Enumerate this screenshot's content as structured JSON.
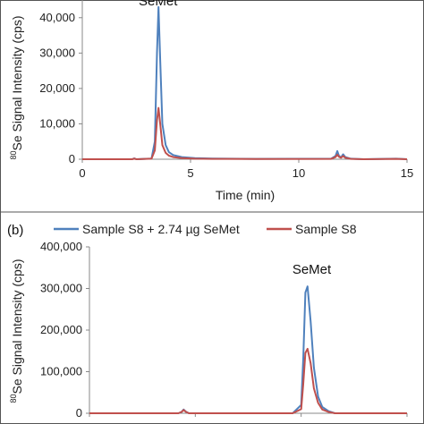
{
  "chart_data": [
    {
      "type": "line",
      "panel_label": "",
      "title": "",
      "xlabel": "Time (min)",
      "ylabel_sup": "80",
      "ylabel": "Se Signal Intensity (cps)",
      "xlim": [
        0,
        15
      ],
      "ylim": [
        0,
        45000
      ],
      "xticks": [
        "0",
        "5",
        "10",
        "15"
      ],
      "yticks": [
        {
          "v": 0,
          "label": "0"
        },
        {
          "v": 10000,
          "label": "10,000"
        },
        {
          "v": 20000,
          "label": "20,000"
        },
        {
          "v": 30000,
          "label": "30,000"
        },
        {
          "v": 40000,
          "label": "40,000"
        }
      ],
      "annotations": [
        {
          "text": "SeMet",
          "x": 3.5,
          "y": 43500
        }
      ],
      "grid": false,
      "series": [
        {
          "color": "#4f81bd",
          "x": [
            0,
            2.3,
            2.4,
            2.5,
            3.2,
            3.35,
            3.45,
            3.52,
            3.6,
            3.7,
            3.85,
            4.0,
            4.2,
            4.6,
            5.2,
            6,
            8,
            11.5,
            11.7,
            11.78,
            11.85,
            11.95,
            12.05,
            12.15,
            12.4,
            13,
            14.5,
            15
          ],
          "y": [
            0,
            0,
            250,
            0,
            200,
            5000,
            30000,
            43000,
            28000,
            10000,
            4000,
            2000,
            1200,
            600,
            300,
            200,
            100,
            150,
            900,
            2300,
            1000,
            500,
            1400,
            600,
            150,
            0,
            150,
            0
          ]
        },
        {
          "color": "#c0504d",
          "x": [
            0,
            2.3,
            2.4,
            2.5,
            3.2,
            3.35,
            3.45,
            3.52,
            3.6,
            3.7,
            3.85,
            4.0,
            4.2,
            4.6,
            5.2,
            6,
            8,
            11.5,
            11.7,
            11.78,
            11.85,
            11.95,
            12.05,
            12.15,
            12.4,
            13,
            14.5,
            15
          ],
          "y": [
            0,
            0,
            150,
            0,
            150,
            2500,
            11000,
            14500,
            10000,
            4000,
            1800,
            1000,
            600,
            300,
            150,
            100,
            80,
            100,
            600,
            1300,
            700,
            400,
            900,
            400,
            100,
            0,
            100,
            0
          ]
        }
      ]
    },
    {
      "type": "line",
      "panel_label": "(b)",
      "title": "",
      "xlabel": "",
      "ylabel_sup": "80",
      "ylabel": "Se Signal Intensity (cps)",
      "xlim": [
        0,
        15
      ],
      "ylim": [
        0,
        400000
      ],
      "xticks": [],
      "yticks": [
        {
          "v": 0,
          "label": "0"
        },
        {
          "v": 100000,
          "label": "100,000"
        },
        {
          "v": 200000,
          "label": "200,000"
        },
        {
          "v": 300000,
          "label": "300,000"
        },
        {
          "v": 400000,
          "label": "400,000"
        }
      ],
      "annotations": [
        {
          "text": "SeMet",
          "x": 10.5,
          "y": 335000
        }
      ],
      "grid": false,
      "series": [
        {
          "name": "Sample S8 + 2.74 µg SeMet",
          "color": "#4f81bd",
          "x": [
            0,
            4.2,
            4.35,
            4.45,
            4.55,
            4.7,
            9.6,
            10.0,
            10.1,
            10.2,
            10.3,
            10.45,
            10.6,
            10.8,
            11.0,
            11.3,
            11.6,
            12,
            15
          ],
          "y": [
            0,
            0,
            3000,
            9000,
            4000,
            0,
            0,
            20000,
            130000,
            290000,
            305000,
            220000,
            110000,
            40000,
            15000,
            5000,
            0,
            0,
            0
          ]
        },
        {
          "name": "Sample S8",
          "color": "#c0504d",
          "x": [
            0,
            4.2,
            4.35,
            4.45,
            4.55,
            4.7,
            9.6,
            10.0,
            10.1,
            10.2,
            10.3,
            10.45,
            10.6,
            10.8,
            11.0,
            11.3,
            11.6,
            12,
            15
          ],
          "y": [
            0,
            0,
            3000,
            8000,
            3500,
            0,
            0,
            10000,
            70000,
            145000,
            155000,
            120000,
            60000,
            25000,
            9000,
            3000,
            0,
            0,
            0
          ]
        }
      ]
    }
  ]
}
